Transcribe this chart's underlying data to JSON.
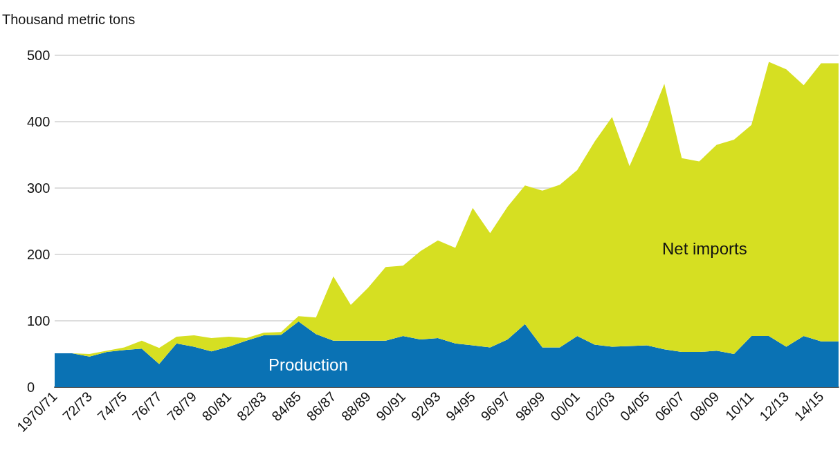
{
  "chart_data": {
    "type": "area",
    "stacked": true,
    "ylabel": "Thousand metric tons",
    "categories": [
      "1970/71",
      null,
      "72/73",
      null,
      "74/75",
      null,
      "76/77",
      null,
      "78/79",
      null,
      "80/81",
      null,
      "82/83",
      null,
      "84/85",
      null,
      "86/87",
      null,
      "88/89",
      null,
      "90/91",
      null,
      "92/93",
      null,
      "94/95",
      null,
      "96/97",
      null,
      "98/99",
      null,
      "00/01",
      null,
      "02/03",
      null,
      "04/05",
      null,
      "06/07",
      null,
      "08/09",
      null,
      "10/11",
      null,
      "12/13",
      null,
      "14/15",
      null
    ],
    "series": [
      {
        "name": "Production",
        "color": "#0a72b4",
        "values": [
          51,
          51,
          46,
          53,
          56,
          58,
          35,
          66,
          61,
          54,
          61,
          70,
          78,
          79,
          99,
          80,
          70,
          70,
          70,
          70,
          77,
          72,
          74,
          66,
          63,
          60,
          72,
          95,
          60,
          60,
          77,
          64,
          61,
          62,
          63,
          57,
          53,
          53,
          55,
          50,
          77,
          77,
          61,
          77,
          69,
          69
        ]
      },
      {
        "name": "Net imports",
        "color": "#d6df22",
        "values": [
          0,
          0,
          4,
          2,
          4,
          12,
          24,
          10,
          17,
          20,
          15,
          4,
          4,
          4,
          8,
          25,
          97,
          54,
          80,
          111,
          106,
          133,
          147,
          144,
          207,
          172,
          200,
          209,
          236,
          245,
          250,
          306,
          346,
          271,
          329,
          400,
          292,
          287,
          310,
          323,
          318,
          413,
          418,
          378,
          419,
          419
        ]
      }
    ],
    "ylim": [
      0,
      500
    ],
    "yticks": [
      0,
      100,
      200,
      300,
      400,
      500
    ],
    "grid": "y",
    "legend": false
  }
}
